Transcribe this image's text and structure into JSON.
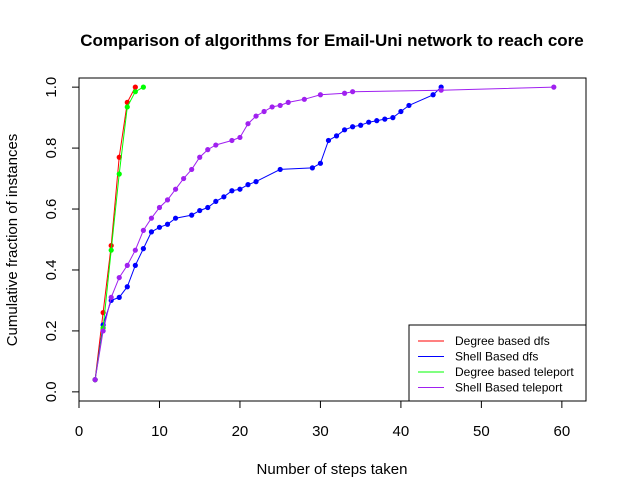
{
  "chart_data": {
    "type": "line",
    "title": "Comparison of algorithms for Email-Uni network to reach core",
    "xlabel": "Number of steps taken",
    "ylabel": "Cumulative fraction of instances",
    "xlim": [
      0,
      63
    ],
    "ylim": [
      -0.03,
      1.03
    ],
    "xticks": [
      0,
      10,
      20,
      30,
      40,
      50,
      60
    ],
    "yticks": [
      0.0,
      0.2,
      0.4,
      0.6,
      0.8,
      1.0
    ],
    "xtick_labels": [
      "0",
      "10",
      "20",
      "30",
      "40",
      "50",
      "60"
    ],
    "ytick_labels": [
      "0.0",
      "0.2",
      "0.4",
      "0.6",
      "0.8",
      "1.0"
    ],
    "grid": false,
    "legend_position": "bottom-right",
    "series": [
      {
        "name": "Degree based dfs",
        "color": "#ff0000",
        "points": [
          [
            2,
            0.04
          ],
          [
            3,
            0.26
          ],
          [
            4,
            0.48
          ],
          [
            5,
            0.77
          ],
          [
            6,
            0.95
          ],
          [
            7,
            1.0
          ]
        ]
      },
      {
        "name": "Shell Based dfs",
        "color": "#0000ff",
        "points": [
          [
            2,
            0.04
          ],
          [
            3,
            0.22
          ],
          [
            4,
            0.3
          ],
          [
            5,
            0.31
          ],
          [
            6,
            0.345
          ],
          [
            7,
            0.415
          ],
          [
            8,
            0.47
          ],
          [
            9,
            0.525
          ],
          [
            10,
            0.54
          ],
          [
            11,
            0.55
          ],
          [
            12,
            0.57
          ],
          [
            14,
            0.58
          ],
          [
            15,
            0.595
          ],
          [
            16,
            0.605
          ],
          [
            17,
            0.625
          ],
          [
            18,
            0.64
          ],
          [
            19,
            0.66
          ],
          [
            20,
            0.665
          ],
          [
            21,
            0.68
          ],
          [
            22,
            0.69
          ],
          [
            25,
            0.73
          ],
          [
            29,
            0.735
          ],
          [
            30,
            0.75
          ],
          [
            31,
            0.825
          ],
          [
            32,
            0.84
          ],
          [
            33,
            0.86
          ],
          [
            34,
            0.87
          ],
          [
            35,
            0.875
          ],
          [
            36,
            0.885
          ],
          [
            37,
            0.89
          ],
          [
            38,
            0.895
          ],
          [
            39,
            0.9
          ],
          [
            40,
            0.92
          ],
          [
            41,
            0.94
          ],
          [
            44,
            0.975
          ],
          [
            45,
            1.0
          ]
        ]
      },
      {
        "name": "Degree based teleport",
        "color": "#00ff00",
        "points": [
          [
            2,
            0.04
          ],
          [
            3,
            0.21
          ],
          [
            4,
            0.465
          ],
          [
            5,
            0.715
          ],
          [
            6,
            0.935
          ],
          [
            7,
            0.985
          ],
          [
            8,
            1.0
          ]
        ]
      },
      {
        "name": "Shell Based teleport",
        "color": "#a020f0",
        "points": [
          [
            2,
            0.04
          ],
          [
            3,
            0.2
          ],
          [
            4,
            0.31
          ],
          [
            5,
            0.375
          ],
          [
            6,
            0.415
          ],
          [
            7,
            0.465
          ],
          [
            8,
            0.53
          ],
          [
            9,
            0.57
          ],
          [
            10,
            0.605
          ],
          [
            11,
            0.63
          ],
          [
            12,
            0.665
          ],
          [
            13,
            0.7
          ],
          [
            14,
            0.73
          ],
          [
            15,
            0.77
          ],
          [
            16,
            0.795
          ],
          [
            17,
            0.81
          ],
          [
            19,
            0.825
          ],
          [
            20,
            0.835
          ],
          [
            21,
            0.88
          ],
          [
            22,
            0.905
          ],
          [
            23,
            0.92
          ],
          [
            24,
            0.935
          ],
          [
            25,
            0.94
          ],
          [
            26,
            0.95
          ],
          [
            28,
            0.96
          ],
          [
            30,
            0.975
          ],
          [
            33,
            0.98
          ],
          [
            34,
            0.985
          ],
          [
            45,
            0.99
          ],
          [
            59,
            1.0
          ]
        ]
      }
    ]
  }
}
